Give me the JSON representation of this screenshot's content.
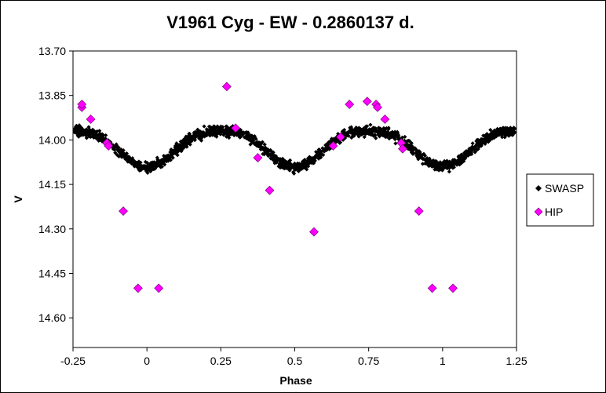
{
  "chart_data": {
    "type": "scatter",
    "title": "V1961 Cyg - EW - 0.2860137 d.",
    "xlabel": "Phase",
    "ylabel": "V",
    "xlim": [
      -0.25,
      1.25
    ],
    "ylim": [
      13.7,
      14.7
    ],
    "y_inverted": true,
    "x_ticks": [
      "-0.25",
      "0",
      "0.25",
      "0.5",
      "0.75",
      "1",
      "1.25"
    ],
    "x_tick_values": [
      -0.25,
      0,
      0.25,
      0.5,
      0.75,
      1.0,
      1.25
    ],
    "y_ticks": [
      "13.70",
      "13.85",
      "14.00",
      "14.15",
      "14.30",
      "14.45",
      "14.60"
    ],
    "y_tick_values": [
      13.7,
      13.85,
      14.0,
      14.15,
      14.3,
      14.45,
      14.6
    ],
    "grid": false,
    "legend_position": "right",
    "series": [
      {
        "name": "SWASP",
        "marker": "diamond-small",
        "color": "#000000",
        "light_curve": {
          "max_mag": 13.97,
          "min_mag": 14.09,
          "minima_phases": [
            0.0,
            0.5,
            1.0
          ],
          "scatter": 0.03
        }
      },
      {
        "name": "HIP",
        "marker": "diamond",
        "color": "#ff00ff",
        "points": [
          [
            -0.22,
            13.89
          ],
          [
            -0.22,
            13.88
          ],
          [
            -0.19,
            13.93
          ],
          [
            -0.135,
            14.01
          ],
          [
            -0.13,
            14.02
          ],
          [
            -0.08,
            14.24
          ],
          [
            -0.03,
            14.5
          ],
          [
            0.04,
            14.5
          ],
          [
            0.27,
            13.82
          ],
          [
            0.3,
            13.96
          ],
          [
            0.375,
            14.06
          ],
          [
            0.415,
            14.17
          ],
          [
            0.565,
            14.31
          ],
          [
            0.63,
            14.02
          ],
          [
            0.655,
            13.99
          ],
          [
            0.685,
            13.88
          ],
          [
            0.745,
            13.87
          ],
          [
            0.775,
            13.88
          ],
          [
            0.78,
            13.89
          ],
          [
            0.805,
            13.93
          ],
          [
            0.86,
            14.01
          ],
          [
            0.865,
            14.03
          ],
          [
            0.92,
            14.24
          ],
          [
            0.965,
            14.5
          ],
          [
            1.035,
            14.5
          ]
        ]
      }
    ]
  }
}
